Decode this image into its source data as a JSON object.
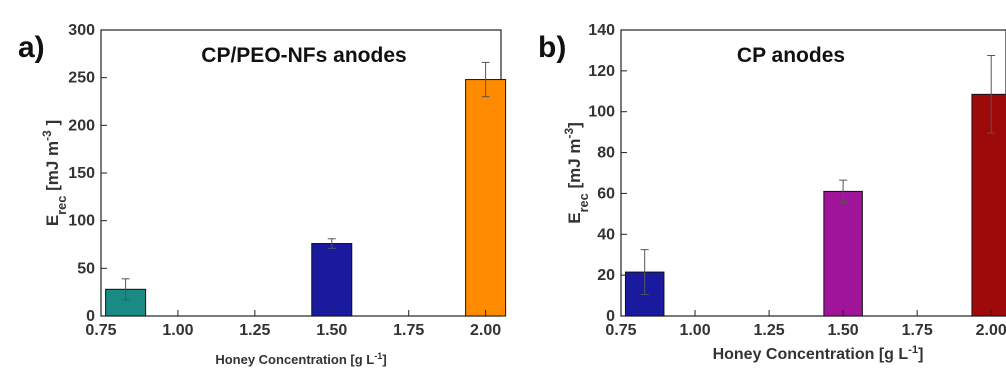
{
  "chart_data": [
    {
      "type": "bar",
      "panel_label": "a)",
      "title": "CP/PEO-NFs anodes",
      "ylabel": {
        "main": "E",
        "sub": "rec",
        "rest": " [mJ m",
        "sup": "-3",
        "close": " ]"
      },
      "xlabel": {
        "main": "Honey Concentration [g L",
        "sup": "-1",
        "close": "]"
      },
      "xlim": [
        0.75,
        2.05
      ],
      "ylim": [
        0,
        300
      ],
      "xticks": [
        "0.75",
        "1.00",
        "1.25",
        "1.50",
        "1.75",
        "2.00"
      ],
      "xtick_values": [
        0.75,
        1.0,
        1.25,
        1.5,
        1.75,
        2.0
      ],
      "yticks": [
        "0",
        "50",
        "100",
        "150",
        "200",
        "250",
        "300"
      ],
      "ytick_values": [
        0,
        50,
        100,
        150,
        200,
        250,
        300
      ],
      "bars": [
        {
          "x": 0.83,
          "value": 28,
          "error": 11,
          "color": "#1a8a84"
        },
        {
          "x": 1.5,
          "value": 76,
          "error": 5,
          "color": "#1a1a9e"
        },
        {
          "x": 2.0,
          "value": 248,
          "error": 18,
          "color": "#ff8c00"
        }
      ],
      "bar_width": 0.13
    },
    {
      "type": "bar",
      "panel_label": "b)",
      "title": "CP anodes",
      "ylabel": {
        "main": "E",
        "sub": "rec",
        "rest": " [mJ m",
        "sup": "-3",
        "close": "]"
      },
      "xlabel": {
        "main": "Honey Concentration [g L",
        "sup": "-1",
        "close": "]"
      },
      "xlim": [
        0.75,
        2.05
      ],
      "ylim": [
        0,
        140
      ],
      "xticks": [
        "0.75",
        "1.00",
        "1.25",
        "1.50",
        "1.75",
        "2.00"
      ],
      "xtick_values": [
        0.75,
        1.0,
        1.25,
        1.5,
        1.75,
        2.0
      ],
      "yticks": [
        "0",
        "20",
        "40",
        "60",
        "80",
        "100",
        "120",
        "140"
      ],
      "ytick_values": [
        0,
        20,
        40,
        60,
        80,
        100,
        120,
        140
      ],
      "bars": [
        {
          "x": 0.83,
          "value": 21.5,
          "error": 11,
          "color": "#1a1a9e"
        },
        {
          "x": 1.5,
          "value": 61,
          "error": 5.5,
          "color": "#a0149a"
        },
        {
          "x": 2.0,
          "value": 108.5,
          "error": 19,
          "color": "#9e0a0a"
        }
      ],
      "bar_width": 0.13
    }
  ]
}
